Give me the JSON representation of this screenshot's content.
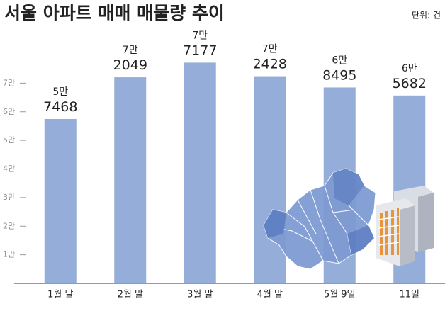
{
  "chart_data": {
    "type": "bar",
    "title": "서울 아파트 매매 매물량 추이",
    "unit_note": "단위: 건",
    "categories": [
      "1월 말",
      "2월 말",
      "3월 말",
      "4월 말",
      "5월 9일",
      "11일"
    ],
    "values": [
      57468,
      72049,
      77177,
      72428,
      68495,
      65682
    ],
    "value_labels": [
      "5만 7468",
      "7만 2049",
      "7만 7177",
      "7만 2428",
      "6만 8495",
      "6만 5682"
    ],
    "color": "#95add9",
    "ylim": [
      0,
      80000
    ],
    "yticks": [
      {
        "value": 10000,
        "label": "1만"
      },
      {
        "value": 20000,
        "label": "2만"
      },
      {
        "value": 30000,
        "label": "3만"
      },
      {
        "value": 40000,
        "label": "4만"
      },
      {
        "value": 50000,
        "label": "5만"
      },
      {
        "value": 60000,
        "label": "6만"
      },
      {
        "value": 70000,
        "label": "7만"
      }
    ]
  }
}
